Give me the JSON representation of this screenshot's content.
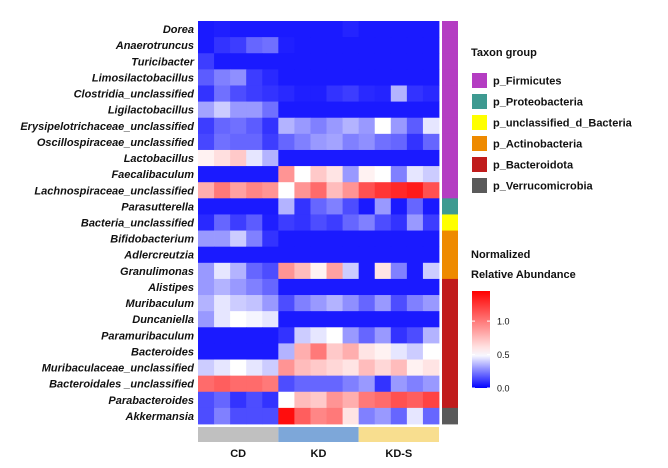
{
  "chart_data": {
    "type": "heatmap",
    "rows": [
      {
        "name": "Dorea",
        "group": "p_Firmicutes",
        "values": [
          0.05,
          0.06,
          0.05,
          0.05,
          0.05,
          0.05,
          0.05,
          0.05,
          0.05,
          0.07,
          0.05,
          0.05,
          0.05,
          0.05,
          0.05
        ]
      },
      {
        "name": "Anaerotruncus",
        "group": "p_Firmicutes",
        "values": [
          0.05,
          0.1,
          0.12,
          0.2,
          0.22,
          0.06,
          0.05,
          0.05,
          0.05,
          0.05,
          0.05,
          0.05,
          0.05,
          0.05,
          0.05
        ]
      },
      {
        "name": "Turicibacter",
        "group": "p_Firmicutes",
        "values": [
          0.12,
          0.05,
          0.05,
          0.05,
          0.05,
          0.05,
          0.05,
          0.05,
          0.05,
          0.05,
          0.05,
          0.05,
          0.05,
          0.05,
          0.05
        ]
      },
      {
        "name": "Limosilactobacillus",
        "group": "p_Firmicutes",
        "values": [
          0.18,
          0.25,
          0.28,
          0.12,
          0.08,
          0.05,
          0.05,
          0.05,
          0.05,
          0.05,
          0.05,
          0.05,
          0.05,
          0.05,
          0.05
        ]
      },
      {
        "name": "Clostridia_unclassified",
        "group": "p_Firmicutes",
        "values": [
          0.1,
          0.22,
          0.15,
          0.12,
          0.1,
          0.08,
          0.06,
          0.06,
          0.1,
          0.12,
          0.08,
          0.07,
          0.35,
          0.1,
          0.08
        ]
      },
      {
        "name": "Ligilactobacillus",
        "group": "p_Firmicutes",
        "values": [
          0.32,
          0.4,
          0.3,
          0.3,
          0.22,
          0.05,
          0.05,
          0.05,
          0.05,
          0.05,
          0.05,
          0.05,
          0.05,
          0.05,
          0.05
        ]
      },
      {
        "name": "Erysipelotrichaceae_unclassified",
        "group": "p_Firmicutes",
        "values": [
          0.12,
          0.2,
          0.22,
          0.18,
          0.1,
          0.35,
          0.3,
          0.25,
          0.3,
          0.35,
          0.3,
          0.5,
          0.3,
          0.18,
          0.45
        ]
      },
      {
        "name": "Oscillospiraceae_unclassified",
        "group": "p_Firmicutes",
        "values": [
          0.14,
          0.22,
          0.2,
          0.2,
          0.12,
          0.2,
          0.25,
          0.3,
          0.32,
          0.25,
          0.28,
          0.22,
          0.2,
          0.1,
          0.2
        ]
      },
      {
        "name": "Lactobacillus",
        "group": "p_Firmicutes",
        "values": [
          0.55,
          0.62,
          0.7,
          0.45,
          0.35,
          0.05,
          0.05,
          0.05,
          0.05,
          0.05,
          0.05,
          0.05,
          0.05,
          0.05,
          0.05
        ]
      },
      {
        "name": "Faecalibaculum",
        "group": "p_Firmicutes",
        "values": [
          0.05,
          0.05,
          0.05,
          0.05,
          0.05,
          0.9,
          0.5,
          0.7,
          0.6,
          0.3,
          0.55,
          0.5,
          0.25,
          0.45,
          0.4
        ]
      },
      {
        "name": "Lachnospiraceae_unclassified",
        "group": "p_Firmicutes",
        "values": [
          0.8,
          1.0,
          0.85,
          0.95,
          0.9,
          0.5,
          0.9,
          1.05,
          0.75,
          0.9,
          1.15,
          1.25,
          1.3,
          1.35,
          1.15
        ]
      },
      {
        "name": "Parasutterella",
        "group": "p_Proteobacteria",
        "values": [
          0.05,
          0.05,
          0.05,
          0.05,
          0.05,
          0.35,
          0.1,
          0.2,
          0.25,
          0.15,
          0.05,
          0.3,
          0.05,
          0.2,
          0.05
        ]
      },
      {
        "name": "Bacteria_unclassified",
        "group": "p_unclassified_d_Bacteria",
        "values": [
          0.08,
          0.2,
          0.12,
          0.18,
          0.06,
          0.12,
          0.1,
          0.15,
          0.12,
          0.2,
          0.25,
          0.15,
          0.1,
          0.3,
          0.12
        ]
      },
      {
        "name": "Bifidobacterium",
        "group": "p_Actinobacteria",
        "values": [
          0.3,
          0.3,
          0.4,
          0.25,
          0.1,
          0.05,
          0.05,
          0.05,
          0.05,
          0.05,
          0.05,
          0.05,
          0.05,
          0.05,
          0.05
        ]
      },
      {
        "name": "Adlercreutzia",
        "group": "p_Actinobacteria",
        "values": [
          0.05,
          0.05,
          0.05,
          0.05,
          0.05,
          0.05,
          0.05,
          0.05,
          0.05,
          0.05,
          0.05,
          0.05,
          0.05,
          0.05,
          0.05
        ]
      },
      {
        "name": "Granulimonas",
        "group": "p_Actinobacteria",
        "values": [
          0.3,
          0.45,
          0.35,
          0.2,
          0.15,
          0.9,
          0.75,
          0.55,
          0.85,
          0.4,
          0.05,
          0.6,
          0.25,
          0.05,
          0.4
        ]
      },
      {
        "name": "Alistipes",
        "group": "p_Bacteroidota",
        "values": [
          0.3,
          0.35,
          0.3,
          0.25,
          0.2,
          0.05,
          0.05,
          0.05,
          0.05,
          0.05,
          0.05,
          0.05,
          0.05,
          0.05,
          0.05
        ]
      },
      {
        "name": "Muribaculum",
        "group": "p_Bacteroidota",
        "values": [
          0.35,
          0.45,
          0.4,
          0.38,
          0.3,
          0.15,
          0.25,
          0.3,
          0.35,
          0.28,
          0.2,
          0.3,
          0.15,
          0.25,
          0.3
        ]
      },
      {
        "name": "Duncaniella",
        "group": "p_Bacteroidota",
        "values": [
          0.3,
          0.45,
          0.5,
          0.48,
          0.45,
          0.05,
          0.05,
          0.05,
          0.05,
          0.05,
          0.05,
          0.05,
          0.05,
          0.05,
          0.05
        ]
      },
      {
        "name": "Paramuribaculum",
        "group": "p_Bacteroidota",
        "values": [
          0.05,
          0.05,
          0.05,
          0.05,
          0.05,
          0.1,
          0.4,
          0.45,
          0.5,
          0.3,
          0.2,
          0.3,
          0.1,
          0.15,
          0.35
        ]
      },
      {
        "name": "Bacteroides",
        "group": "p_Bacteroidota",
        "values": [
          0.05,
          0.05,
          0.05,
          0.05,
          0.05,
          0.35,
          0.8,
          1.0,
          0.7,
          0.8,
          0.6,
          0.55,
          0.45,
          0.4,
          0.5
        ]
      },
      {
        "name": "Muribaculaceae_unclassified",
        "group": "p_Bacteroidota",
        "values": [
          0.4,
          0.45,
          0.5,
          0.45,
          0.4,
          0.9,
          0.75,
          0.7,
          0.65,
          0.6,
          0.75,
          0.65,
          0.75,
          0.55,
          0.6
        ]
      },
      {
        "name": "Bacteroidales _unclassified",
        "group": "p_Bacteroidota",
        "values": [
          1.05,
          1.1,
          1.05,
          1.05,
          1.0,
          0.15,
          0.2,
          0.2,
          0.2,
          0.25,
          0.3,
          0.1,
          0.3,
          0.25,
          0.3
        ]
      },
      {
        "name": "Parabacteroides",
        "group": "p_Bacteroidota",
        "values": [
          0.15,
          0.2,
          0.1,
          0.15,
          0.1,
          0.5,
          0.75,
          0.7,
          0.9,
          0.8,
          1.0,
          1.05,
          1.15,
          1.1,
          1.2
        ]
      },
      {
        "name": "Akkermansia",
        "group": "p_Verrucomicrobia",
        "values": [
          0.15,
          0.25,
          0.15,
          0.15,
          0.15,
          1.4,
          1.1,
          0.95,
          1.0,
          0.6,
          0.25,
          0.3,
          0.2,
          0.45,
          0.2
        ]
      }
    ],
    "sample_groups": [
      {
        "name": "CD",
        "count": 5,
        "color": "#c0c0c0"
      },
      {
        "name": "KD",
        "count": 5,
        "color": "#7da7d9"
      },
      {
        "name": "KD-S",
        "count": 5,
        "color": "#f8de8f"
      }
    ],
    "taxon_groups": [
      {
        "name": "p_Firmicutes",
        "color": "#b43dc2"
      },
      {
        "name": "p_Proteobacteria",
        "color": "#3e9a91"
      },
      {
        "name": "p_unclassified_d_Bacteria",
        "color": "#ffff00"
      },
      {
        "name": "p_Actinobacteria",
        "color": "#ee8a00"
      },
      {
        "name": "p_Bacteroidota",
        "color": "#c01c1c"
      },
      {
        "name": "p_Verrucomicrobia",
        "color": "#5a5a5a"
      }
    ],
    "taxon_legend_title": "Taxon group",
    "color_scale": {
      "title_line1": "Normalized",
      "title_line2": "Relative Abundance",
      "min": 0.0,
      "max": 1.45,
      "mid": 0.5,
      "low_color": "#0000ff",
      "mid_color": "#ffffff",
      "high_color": "#ff0000",
      "ticks": [
        0.0,
        0.5,
        1.0
      ],
      "tick_labels": [
        "0.0",
        "0.5",
        "1.0"
      ]
    }
  }
}
